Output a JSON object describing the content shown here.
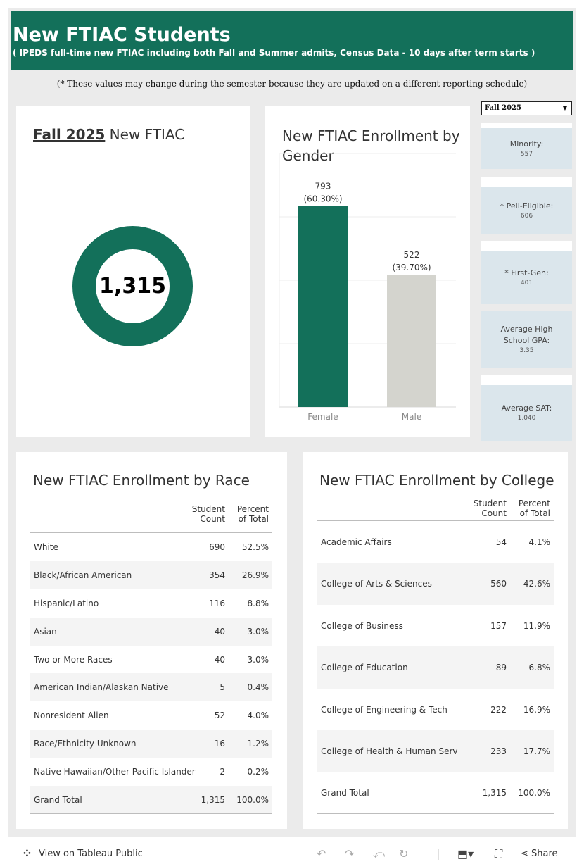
{
  "header": {
    "title": "New FTIAC Students",
    "subtitle": "( IPEDS full-time new FTIAC  including both Fall and Summer admits, Census Data - 10 days after term starts )"
  },
  "note": "(* These values may change during the semester because they are updated on a different reporting schedule)",
  "kpi": {
    "term": "Fall 2025",
    "label": " New FTIAC",
    "total": "1,315"
  },
  "filter": {
    "selected": "Fall 2025",
    "caret": "▼"
  },
  "stats": [
    {
      "label": "Minority:",
      "value": "557"
    },
    {
      "label": "* Pell-Eligible:",
      "value": "606"
    },
    {
      "label": "* First-Gen:",
      "value": "401"
    },
    {
      "label": "Average High School GPA:",
      "value": "3.35"
    },
    {
      "label": "Average SAT:",
      "value": "1,040"
    }
  ],
  "chart_data": {
    "type": "bar",
    "title": "New FTIAC Enrollment by Gender",
    "categories": [
      "Female",
      "Male"
    ],
    "values": [
      793,
      522
    ],
    "value_labels": [
      "793",
      "522"
    ],
    "percent_labels": [
      "(60.30%)",
      "(39.70%)"
    ],
    "colors": [
      "#13705a",
      "#d4d4ce"
    ],
    "ylim": [
      0,
      1000
    ],
    "grid": true
  },
  "race_table": {
    "title": "New FTIAC Enrollment by Race",
    "col_count": "Student Count",
    "col_pct": "Percent of Total",
    "rows": [
      {
        "name": "White",
        "count": "690",
        "pct": "52.5%"
      },
      {
        "name": "Black/African American",
        "count": "354",
        "pct": "26.9%"
      },
      {
        "name": "Hispanic/Latino",
        "count": "116",
        "pct": "8.8%"
      },
      {
        "name": "Asian",
        "count": "40",
        "pct": "3.0%"
      },
      {
        "name": "Two or More Races",
        "count": "40",
        "pct": "3.0%"
      },
      {
        "name": "American Indian/Alaskan Native",
        "count": "5",
        "pct": "0.4%"
      },
      {
        "name": "Nonresident Alien",
        "count": "52",
        "pct": "4.0%"
      },
      {
        "name": "Race/Ethnicity Unknown",
        "count": "16",
        "pct": "1.2%"
      },
      {
        "name": "Native Hawaiian/Other Pacific Islander",
        "count": "2",
        "pct": "0.2%"
      },
      {
        "name": "Grand Total",
        "count": "1,315",
        "pct": "100.0%"
      }
    ]
  },
  "college_table": {
    "title": "New FTIAC Enrollment by College",
    "col_count": "Student Count",
    "col_pct": "Percent of Total",
    "rows": [
      {
        "name": "Academic Affairs",
        "count": "54",
        "pct": "4.1%"
      },
      {
        "name": "College of Arts & Sciences",
        "count": "560",
        "pct": "42.6%"
      },
      {
        "name": "College of Business",
        "count": "157",
        "pct": "11.9%"
      },
      {
        "name": "College of Education",
        "count": "89",
        "pct": "6.8%"
      },
      {
        "name": "College of Engineering & Tech",
        "count": "222",
        "pct": "16.9%"
      },
      {
        "name": "College of Health & Human Serv",
        "count": "233",
        "pct": "17.7%"
      },
      {
        "name": "Grand Total",
        "count": "1,315",
        "pct": "100.0%"
      }
    ]
  },
  "footer": {
    "view_link": "View on Tableau Public",
    "share": "Share"
  }
}
